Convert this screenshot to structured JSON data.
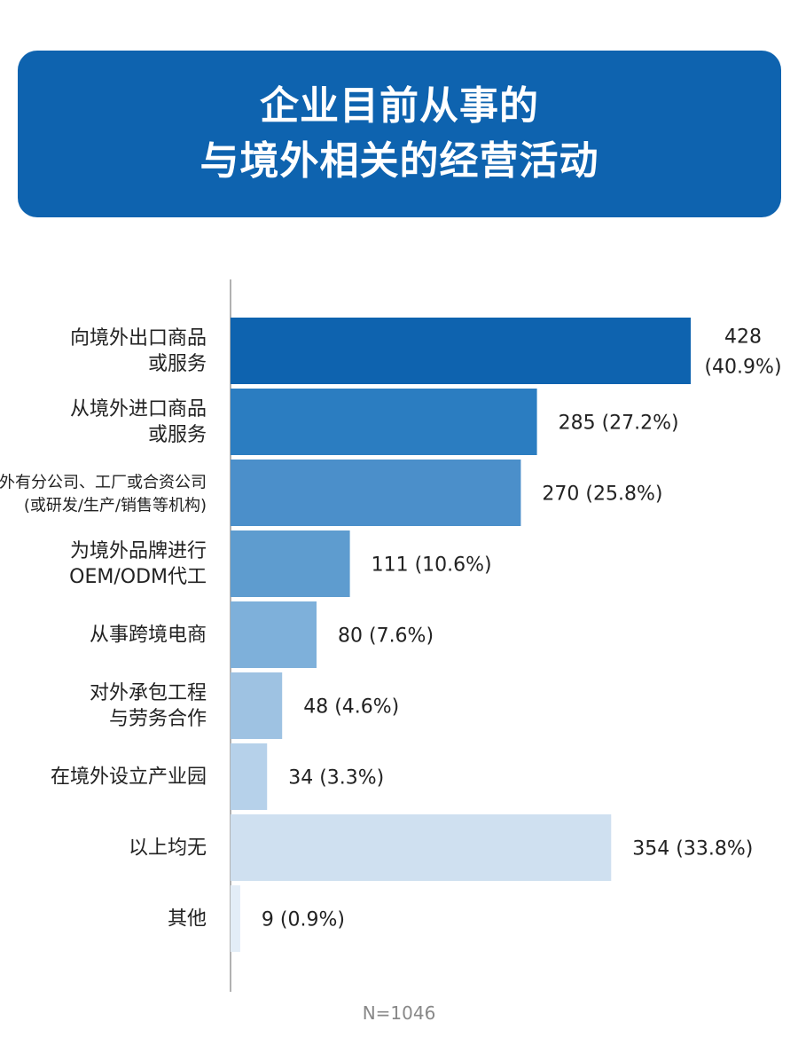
{
  "title": {
    "line1": "企业目前从事的",
    "line2": "与境外相关的经营活动"
  },
  "note": "N=1046",
  "colors": {
    "title_bg": "#0e63af",
    "axis": "#999999",
    "bars": [
      "#0e63af",
      "#2b7dc1",
      "#4b8fca",
      "#5e9ccf",
      "#7eb0da",
      "#9ec2e2",
      "#b6d1ea",
      "#cfe0f0",
      "#e3edf7"
    ]
  },
  "chart_data": {
    "type": "bar",
    "orientation": "horizontal",
    "categories": [
      "向境外出口商品\n或服务",
      "从境外进口商品\n或服务",
      "在境外有分公司、工厂或合资公司\n(或研发/生产/销售等机构)",
      "为境外品牌进行\nOEM/ODM代工",
      "从事跨境电商",
      "对外承包工程\n与劳务合作",
      "在境外设立产业园",
      "以上均无",
      "其他"
    ],
    "values": [
      428,
      285,
      270,
      111,
      80,
      48,
      34,
      354,
      9
    ],
    "percents": [
      "40.9%",
      "27.2%",
      "25.8%",
      "10.6%",
      "7.6%",
      "4.6%",
      "3.3%",
      "33.8%",
      "0.9%"
    ],
    "value_labels": [
      "428\n(40.9%)",
      "285 (27.2%)",
      "270 (25.8%)",
      "111 (10.6%)",
      "80 (7.6%)",
      "48 (4.6%)",
      "34 (3.3%)",
      "354 (33.8%)",
      "9 (0.9%)"
    ],
    "title": "企业目前从事的与境外相关的经营活动",
    "xlabel": "",
    "ylabel": "",
    "grid": false,
    "legend": "none"
  }
}
